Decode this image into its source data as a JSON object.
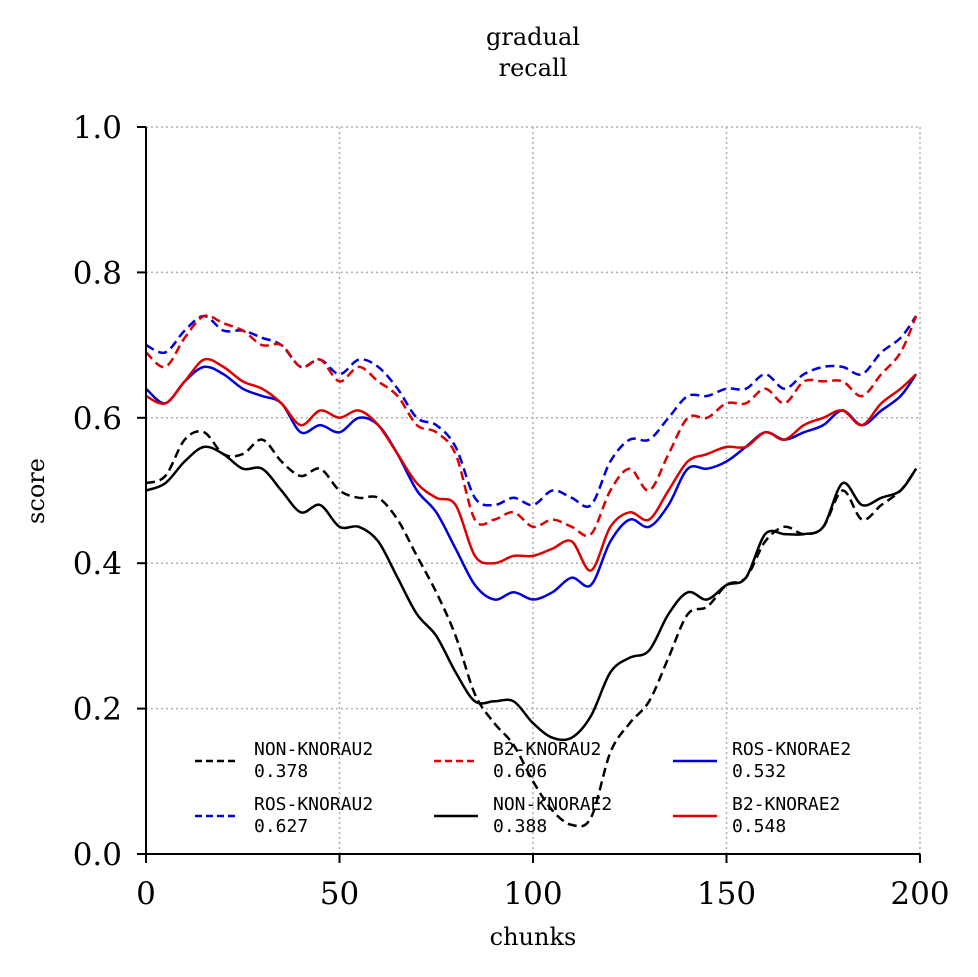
{
  "chart_data": {
    "type": "line",
    "title": "gradual",
    "subtitle": "recall",
    "xlabel": "chunks",
    "ylabel": "score",
    "xlim": [
      0,
      200
    ],
    "ylim": [
      0,
      1.0
    ],
    "xticks": [
      0,
      50,
      100,
      150,
      200
    ],
    "xtick_labels": [
      "0",
      "50",
      "100",
      "150",
      "200"
    ],
    "yticks": [
      0,
      0.2,
      0.4,
      0.6,
      0.8,
      1.0
    ],
    "ytick_labels": [
      "0.0",
      "0.2",
      "0.4",
      "0.6",
      "0.8",
      "1.0"
    ],
    "grid": true,
    "legend_position": "lower-center",
    "x": [
      0,
      5,
      10,
      15,
      20,
      25,
      30,
      35,
      40,
      45,
      50,
      55,
      60,
      65,
      70,
      75,
      80,
      85,
      90,
      95,
      100,
      105,
      110,
      115,
      120,
      125,
      130,
      135,
      140,
      145,
      150,
      155,
      160,
      165,
      170,
      175,
      180,
      185,
      190,
      195,
      199
    ],
    "series": [
      {
        "name": "NON-KNORAU2",
        "score": "0.378",
        "color": "#000000",
        "dash": true,
        "values": [
          0.51,
          0.52,
          0.57,
          0.58,
          0.55,
          0.55,
          0.57,
          0.54,
          0.52,
          0.53,
          0.5,
          0.49,
          0.49,
          0.46,
          0.41,
          0.36,
          0.3,
          0.22,
          0.18,
          0.15,
          0.1,
          0.06,
          0.04,
          0.05,
          0.14,
          0.18,
          0.21,
          0.27,
          0.33,
          0.34,
          0.37,
          0.38,
          0.43,
          0.45,
          0.44,
          0.45,
          0.5,
          0.46,
          0.48,
          0.5,
          0.53
        ]
      },
      {
        "name": "ROS-KNORAU2",
        "score": "0.627",
        "color": "#0000dd",
        "dash": true,
        "values": [
          0.7,
          0.69,
          0.72,
          0.74,
          0.72,
          0.72,
          0.71,
          0.7,
          0.67,
          0.68,
          0.66,
          0.68,
          0.67,
          0.64,
          0.6,
          0.59,
          0.56,
          0.49,
          0.48,
          0.49,
          0.48,
          0.5,
          0.49,
          0.48,
          0.54,
          0.57,
          0.57,
          0.6,
          0.63,
          0.63,
          0.64,
          0.64,
          0.66,
          0.64,
          0.66,
          0.67,
          0.67,
          0.66,
          0.69,
          0.71,
          0.74
        ]
      },
      {
        "name": "B2-KNORAU2",
        "score": "0.606",
        "color": "#dd0000",
        "dash": true,
        "values": [
          0.69,
          0.67,
          0.71,
          0.74,
          0.73,
          0.72,
          0.7,
          0.7,
          0.67,
          0.68,
          0.65,
          0.67,
          0.65,
          0.63,
          0.59,
          0.58,
          0.55,
          0.46,
          0.46,
          0.47,
          0.45,
          0.46,
          0.45,
          0.44,
          0.5,
          0.53,
          0.5,
          0.55,
          0.6,
          0.6,
          0.62,
          0.62,
          0.64,
          0.62,
          0.65,
          0.65,
          0.65,
          0.63,
          0.66,
          0.69,
          0.74
        ]
      },
      {
        "name": "NON-KNORAE2",
        "score": "0.388",
        "color": "#000000",
        "dash": false,
        "values": [
          0.5,
          0.51,
          0.54,
          0.56,
          0.55,
          0.53,
          0.53,
          0.5,
          0.47,
          0.48,
          0.45,
          0.45,
          0.43,
          0.38,
          0.33,
          0.3,
          0.25,
          0.21,
          0.21,
          0.21,
          0.18,
          0.16,
          0.16,
          0.19,
          0.25,
          0.27,
          0.28,
          0.33,
          0.36,
          0.35,
          0.37,
          0.38,
          0.44,
          0.44,
          0.44,
          0.45,
          0.51,
          0.48,
          0.49,
          0.5,
          0.53
        ]
      },
      {
        "name": "ROS-KNORAE2",
        "score": "0.532",
        "color": "#0000dd",
        "dash": false,
        "values": [
          0.64,
          0.62,
          0.65,
          0.67,
          0.66,
          0.64,
          0.63,
          0.62,
          0.58,
          0.59,
          0.58,
          0.6,
          0.59,
          0.55,
          0.5,
          0.47,
          0.42,
          0.37,
          0.35,
          0.36,
          0.35,
          0.36,
          0.38,
          0.37,
          0.43,
          0.46,
          0.45,
          0.48,
          0.53,
          0.53,
          0.54,
          0.56,
          0.58,
          0.57,
          0.58,
          0.59,
          0.61,
          0.59,
          0.61,
          0.63,
          0.66
        ]
      },
      {
        "name": "B2-KNORAE2",
        "score": "0.548",
        "color": "#dd0000",
        "dash": false,
        "values": [
          0.63,
          0.62,
          0.65,
          0.68,
          0.67,
          0.65,
          0.64,
          0.62,
          0.59,
          0.61,
          0.6,
          0.61,
          0.59,
          0.55,
          0.51,
          0.49,
          0.48,
          0.41,
          0.4,
          0.41,
          0.41,
          0.42,
          0.43,
          0.39,
          0.45,
          0.47,
          0.46,
          0.5,
          0.54,
          0.55,
          0.56,
          0.56,
          0.58,
          0.57,
          0.59,
          0.6,
          0.61,
          0.59,
          0.62,
          0.64,
          0.66
        ]
      }
    ]
  }
}
